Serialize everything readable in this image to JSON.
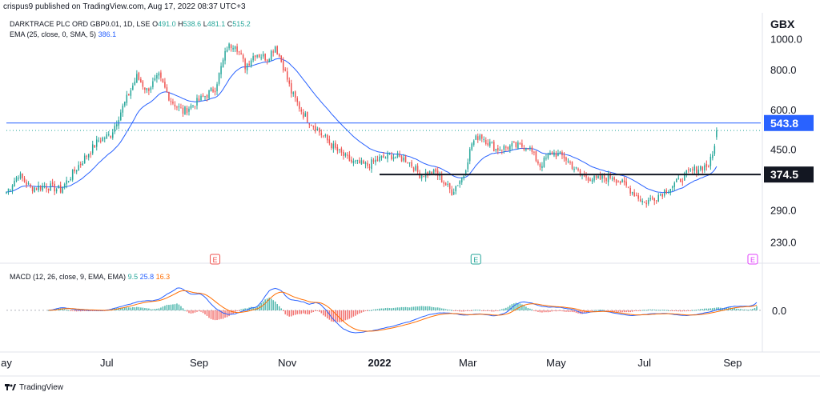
{
  "header": {
    "credit": "crispus9 published on TradingView.com, Aug 17, 2022 08:37 UTC+3"
  },
  "legend": {
    "symbol": "DARKTRACE PLC ORD GBP0.01, 1D, LSE",
    "o_label": "O",
    "o_value": "491.0",
    "h_label": "H",
    "h_value": "538.6",
    "l_label": "L",
    "l_value": "481.1",
    "c_label": "C",
    "c_value": "515.2",
    "ema_label": "EMA (25, close, 0, SMA, 5)",
    "ema_value": "386.1",
    "macd_label": "MACD (12, 26, close, 9, EMA, EMA)",
    "macd_hist": "9.5",
    "macd_line": "25.8",
    "macd_signal": "16.3"
  },
  "currency": "GBX",
  "footer": {
    "brand": "TradingView"
  },
  "colors": {
    "up": "#26a69a",
    "down": "#ef5350",
    "ema": "#2962ff",
    "macd": "#2962ff",
    "signal": "#ff6d00",
    "badge_blue": "#2962ff",
    "badge_black": "#131722",
    "event": "#ef5350",
    "event_earnings": "#26a69a",
    "event_future": "#e040fb"
  },
  "chart_data": {
    "type": "candlestick",
    "price_axis": {
      "ticks": [
        "1000.0",
        "800.0",
        "600.0",
        "450.0",
        "290.0",
        "230.0"
      ],
      "tick_values": [
        1000,
        800,
        600,
        450,
        290,
        230
      ],
      "scale": "log",
      "range": [
        215,
        1180
      ]
    },
    "macd_axis": {
      "ticks": [
        "0.0"
      ],
      "tick_values": [
        0
      ],
      "range": [
        -140,
        160
      ]
    },
    "time_axis": {
      "labels": [
        "ay",
        "Jul",
        "Sep",
        "Nov",
        "2022",
        "Mar",
        "May",
        "Jul",
        "Sep"
      ],
      "label_index": [
        0,
        50,
        96,
        140,
        186,
        230,
        274,
        318,
        362
      ]
    },
    "horizontal_lines": [
      {
        "value": 543.8,
        "label": "543.8",
        "style": "blue"
      },
      {
        "value": 374.5,
        "label": "374.5",
        "style": "black"
      }
    ],
    "dotted_last_close": 515.2,
    "events": [
      {
        "index": 104,
        "label": "E",
        "kind": "dividend"
      },
      {
        "index": 234,
        "label": "E",
        "kind": "earnings"
      },
      {
        "index": 372,
        "label": "E",
        "kind": "future"
      }
    ],
    "price_path": [
      [
        0,
        330
      ],
      [
        6,
        375
      ],
      [
        12,
        340
      ],
      [
        20,
        345
      ],
      [
        27,
        335
      ],
      [
        36,
        400
      ],
      [
        46,
        480
      ],
      [
        52,
        500
      ],
      [
        58,
        610
      ],
      [
        65,
        760
      ],
      [
        70,
        690
      ],
      [
        76,
        760
      ],
      [
        82,
        640
      ],
      [
        88,
        590
      ],
      [
        96,
        640
      ],
      [
        104,
        700
      ],
      [
        110,
        940
      ],
      [
        114,
        970
      ],
      [
        119,
        820
      ],
      [
        124,
        900
      ],
      [
        130,
        870
      ],
      [
        134,
        950
      ],
      [
        138,
        820
      ],
      [
        142,
        680
      ],
      [
        148,
        580
      ],
      [
        156,
        510
      ],
      [
        164,
        450
      ],
      [
        172,
        410
      ],
      [
        180,
        400
      ],
      [
        186,
        420
      ],
      [
        192,
        430
      ],
      [
        200,
        415
      ],
      [
        206,
        375
      ],
      [
        214,
        380
      ],
      [
        222,
        330
      ],
      [
        228,
        375
      ],
      [
        232,
        470
      ],
      [
        236,
        500
      ],
      [
        244,
        450
      ],
      [
        252,
        460
      ],
      [
        260,
        460
      ],
      [
        266,
        400
      ],
      [
        272,
        440
      ],
      [
        278,
        425
      ],
      [
        286,
        375
      ],
      [
        294,
        360
      ],
      [
        302,
        370
      ],
      [
        310,
        340
      ],
      [
        318,
        305
      ],
      [
        324,
        320
      ],
      [
        332,
        345
      ],
      [
        340,
        380
      ],
      [
        346,
        395
      ],
      [
        350,
        400
      ],
      [
        352,
        430
      ],
      [
        354,
        515
      ]
    ],
    "ema_last": 386.1,
    "macd_last": {
      "histogram": 9.5,
      "macd": 25.8,
      "signal": 16.3
    }
  }
}
